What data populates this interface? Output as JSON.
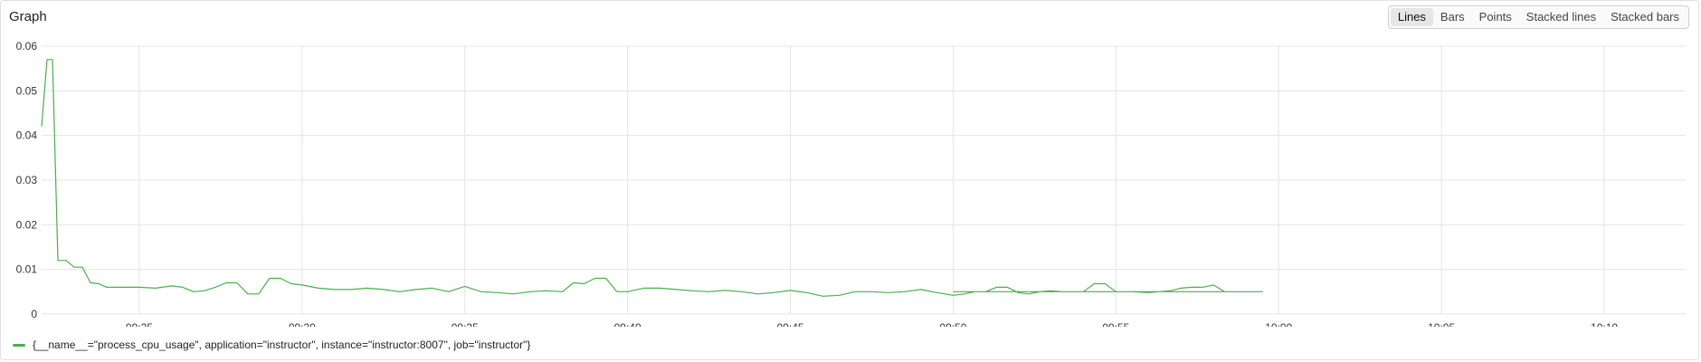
{
  "panel": {
    "title": "Graph"
  },
  "toolbar": {
    "buttons": [
      {
        "label": "Lines",
        "active": true
      },
      {
        "label": "Bars",
        "active": false
      },
      {
        "label": "Points",
        "active": false
      },
      {
        "label": "Stacked lines",
        "active": false
      },
      {
        "label": "Stacked bars",
        "active": false
      }
    ]
  },
  "colors": {
    "series": "#4cae4c",
    "grid": "#e4e4e4"
  },
  "legend": {
    "label": "{__name__=\"process_cpu_usage\", application=\"instructor\", instance=\"instructor:8007\", job=\"instructor\"}"
  },
  "chart_data": {
    "type": "line",
    "title": "",
    "xlabel": "",
    "ylabel": "",
    "ylim": [
      0,
      0.06
    ],
    "xlim": [
      "09:22",
      "10:12:30"
    ],
    "grid": true,
    "legend_position": "bottom-left",
    "y_ticks": [
      "0",
      "0.01",
      "0.02",
      "0.03",
      "0.04",
      "0.05",
      "0.06"
    ],
    "x_ticks": [
      "09:25",
      "09:30",
      "09:35",
      "09:40",
      "09:45",
      "09:50",
      "09:55",
      "10:00",
      "10:05",
      "10:10"
    ],
    "series": [
      {
        "name": "{__name__=\"process_cpu_usage\", application=\"instructor\", instance=\"instructor:8007\", job=\"instructor\"}",
        "points": [
          [
            "09:22:00",
            0.042
          ],
          [
            "09:22:10",
            0.057
          ],
          [
            "09:22:20",
            0.057
          ],
          [
            "09:22:30",
            0.012
          ],
          [
            "09:22:45",
            0.012
          ],
          [
            "09:23:00",
            0.0105
          ],
          [
            "09:23:15",
            0.0105
          ],
          [
            "09:23:30",
            0.007
          ],
          [
            "09:23:45",
            0.0068
          ],
          [
            "09:24:00",
            0.006
          ],
          [
            "09:24:30",
            0.006
          ],
          [
            "09:25:00",
            0.006
          ],
          [
            "09:25:30",
            0.0058
          ],
          [
            "09:26:00",
            0.0063
          ],
          [
            "09:26:20",
            0.006
          ],
          [
            "09:26:40",
            0.005
          ],
          [
            "09:27:00",
            0.0052
          ],
          [
            "09:27:20",
            0.006
          ],
          [
            "09:27:40",
            0.007
          ],
          [
            "09:28:00",
            0.007
          ],
          [
            "09:28:20",
            0.0045
          ],
          [
            "09:28:40",
            0.0045
          ],
          [
            "09:29:00",
            0.008
          ],
          [
            "09:29:20",
            0.008
          ],
          [
            "09:29:40",
            0.0068
          ],
          [
            "09:30:00",
            0.0065
          ],
          [
            "09:30:30",
            0.0058
          ],
          [
            "09:31:00",
            0.0055
          ],
          [
            "09:31:30",
            0.0055
          ],
          [
            "09:32:00",
            0.0058
          ],
          [
            "09:32:30",
            0.0055
          ],
          [
            "09:33:00",
            0.005
          ],
          [
            "09:33:30",
            0.0055
          ],
          [
            "09:34:00",
            0.0058
          ],
          [
            "09:34:30",
            0.005
          ],
          [
            "09:35:00",
            0.0062
          ],
          [
            "09:35:30",
            0.005
          ],
          [
            "09:36:00",
            0.0048
          ],
          [
            "09:36:30",
            0.0045
          ],
          [
            "09:37:00",
            0.005
          ],
          [
            "09:37:30",
            0.0052
          ],
          [
            "09:38:00",
            0.005
          ],
          [
            "09:38:20",
            0.007
          ],
          [
            "09:38:40",
            0.0068
          ],
          [
            "09:39:00",
            0.008
          ],
          [
            "09:39:20",
            0.008
          ],
          [
            "09:39:40",
            0.005
          ],
          [
            "09:40:00",
            0.005
          ],
          [
            "09:40:30",
            0.0058
          ],
          [
            "09:41:00",
            0.0058
          ],
          [
            "09:41:30",
            0.0055
          ],
          [
            "09:42:00",
            0.0052
          ],
          [
            "09:42:30",
            0.005
          ],
          [
            "09:43:00",
            0.0053
          ],
          [
            "09:43:30",
            0.005
          ],
          [
            "09:44:00",
            0.0045
          ],
          [
            "09:44:30",
            0.0048
          ],
          [
            "09:45:00",
            0.0053
          ],
          [
            "09:45:30",
            0.0048
          ],
          [
            "09:46:00",
            0.004
          ],
          [
            "09:46:30",
            0.0042
          ],
          [
            "09:47:00",
            0.005
          ],
          [
            "09:47:30",
            0.005
          ],
          [
            "09:48:00",
            0.0048
          ],
          [
            "09:48:30",
            0.005
          ],
          [
            "09:49:00",
            0.0055
          ],
          [
            "09:49:30",
            0.0048
          ],
          [
            "09:50:00",
            0.0042
          ],
          [
            "09:50:20",
            0.0045
          ],
          [
            "09:50:40",
            0.005
          ],
          [
            "09:51:00",
            0.005
          ],
          [
            "09:51:20",
            0.006
          ],
          [
            "09:51:40",
            0.006
          ],
          [
            "09:52:00",
            0.0048
          ],
          [
            "09:52:20",
            0.0045
          ],
          [
            "09:52:40",
            0.005
          ],
          [
            "09:53:00",
            0.0052
          ],
          [
            "09:53:20",
            0.005
          ],
          [
            "09:53:40",
            0.005
          ],
          [
            "09:54:00",
            0.005
          ],
          [
            "09:54:20",
            0.0068
          ],
          [
            "09:54:40",
            0.0068
          ],
          [
            "09:55:00",
            0.005
          ],
          [
            "09:55:30",
            0.005
          ],
          [
            "09:56:00",
            0.0048
          ],
          [
            "09:56:20",
            0.005
          ],
          [
            "09:56:40",
            0.0052
          ],
          [
            "09:57:00",
            0.0058
          ],
          [
            "09:57:20",
            0.006
          ],
          [
            "09:57:40",
            0.006
          ],
          [
            "09:58:00",
            0.0065
          ],
          [
            "09:58:20",
            0.005
          ],
          [
            "09:58:40",
            0.005
          ],
          [
            "09:59:00",
            0.005
          ],
          [
            "09:59:30",
            0.005
          ],
          [
            "09:50:00",
            0.005
          ]
        ]
      }
    ]
  }
}
